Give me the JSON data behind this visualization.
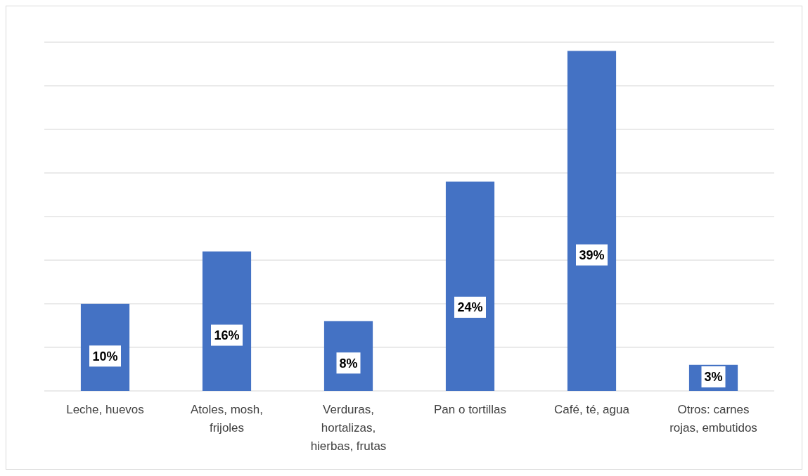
{
  "chart_data": {
    "type": "bar",
    "categories": [
      "Leche, huevos",
      "Atoles, mosh, frijoles",
      "Verduras, hortalizas, hierbas, frutas",
      "Pan o tortillas",
      "Café, té, agua",
      "Otros: carnes rojas, embutidos"
    ],
    "values": [
      10,
      16,
      8,
      24,
      39,
      3
    ],
    "color": "#4472c4",
    "data_labels": true,
    "value_labels": [
      "10%",
      "16%",
      "8%",
      "24%",
      "39%",
      "3%"
    ],
    "ylim": [
      0,
      40
    ],
    "yticks": [
      {
        "value": 0,
        "label": null
      },
      {
        "value": 5,
        "label": null
      },
      {
        "value": 10,
        "label": null
      },
      {
        "value": 15,
        "label": null
      },
      {
        "value": 20,
        "label": null
      },
      {
        "value": 25,
        "label": null
      },
      {
        "value": 30,
        "label": null
      },
      {
        "value": 35,
        "label": null
      },
      {
        "value": 40,
        "label": null
      }
    ],
    "grid": "y",
    "tick_labels": "x"
  }
}
